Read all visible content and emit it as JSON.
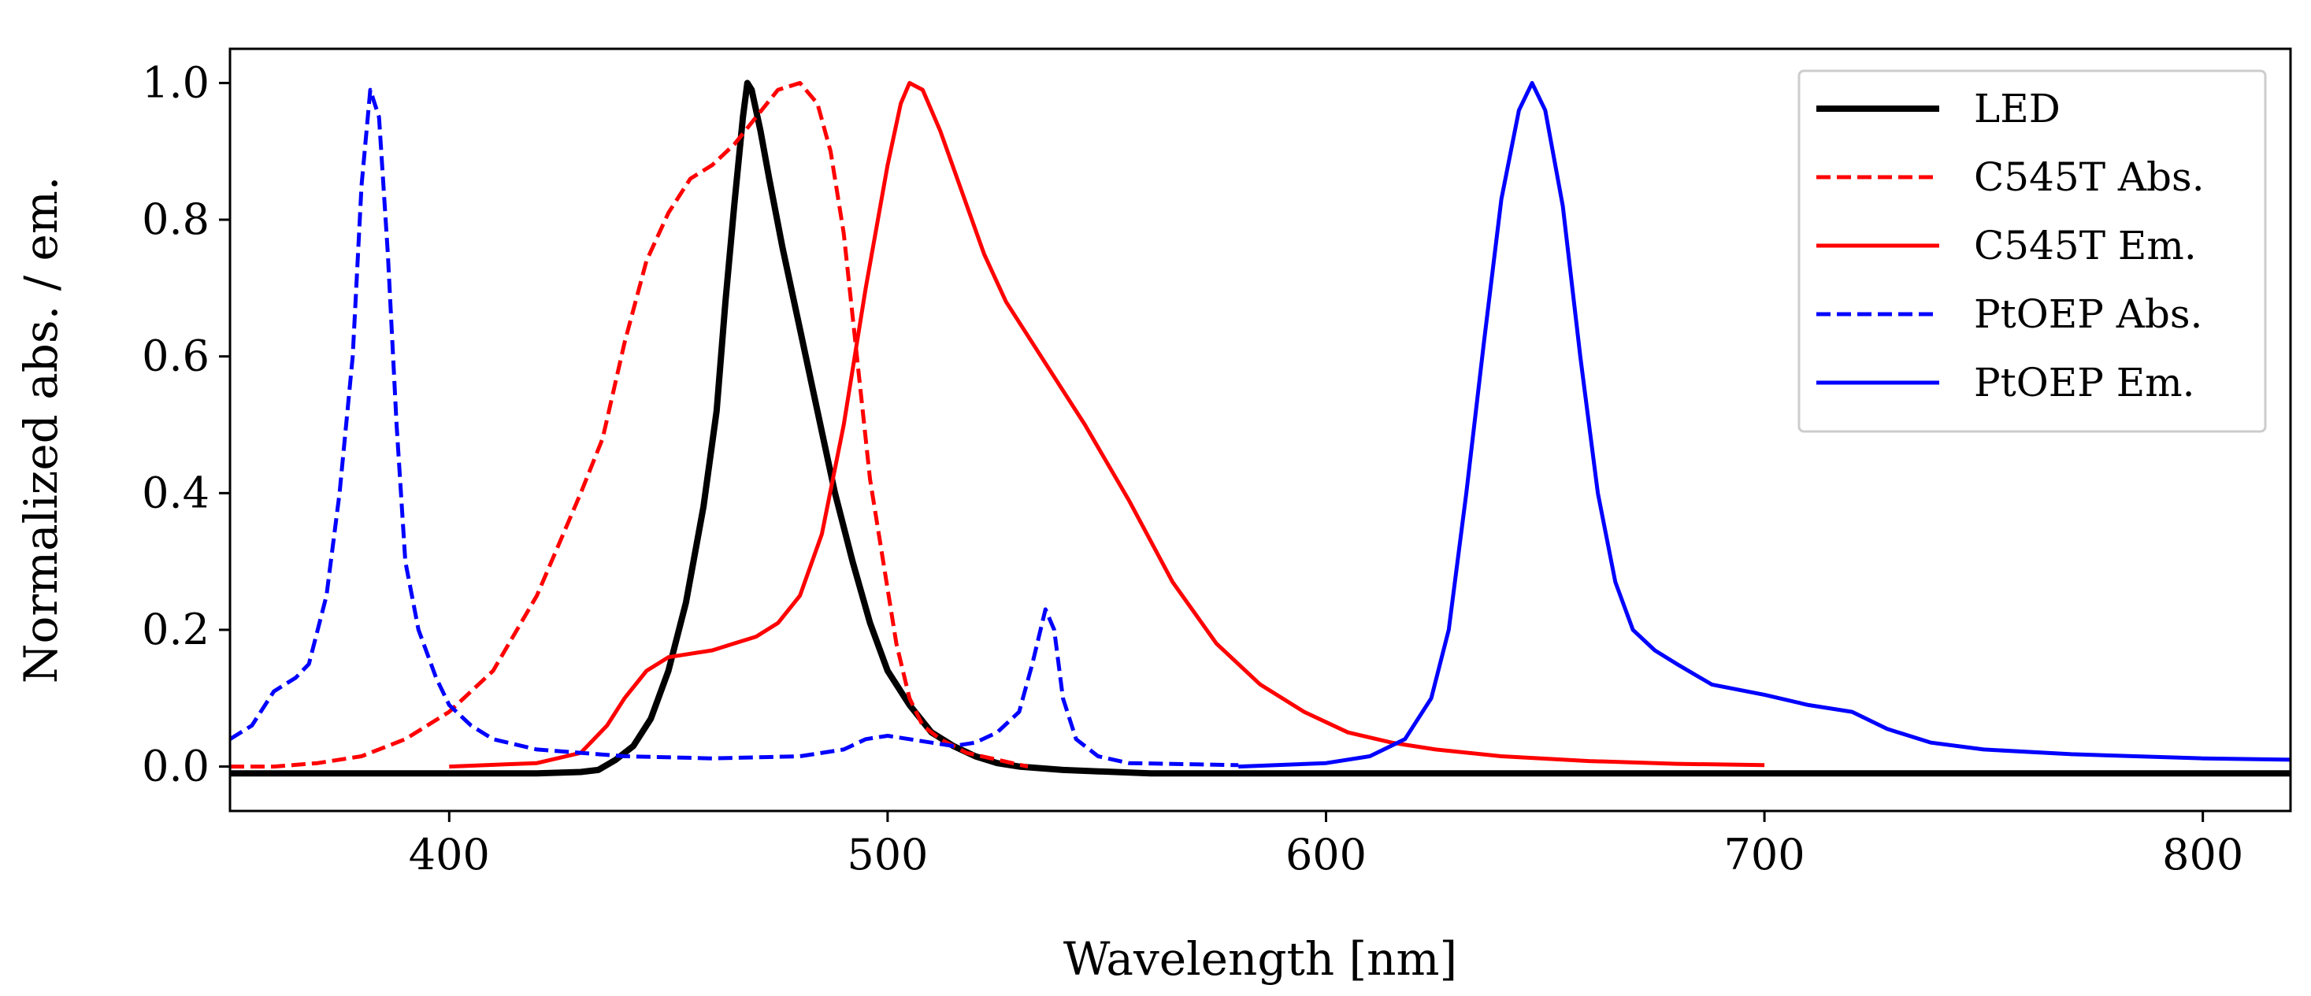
{
  "chart_data": {
    "type": "line",
    "title": "",
    "xlabel": "Wavelength [nm]",
    "ylabel": "Normalized abs. / em.",
    "xlim": [
      350,
      820
    ],
    "ylim": [
      -0.065,
      1.05
    ],
    "xticks": [
      400,
      500,
      600,
      700,
      800
    ],
    "xtick_labels": [
      "400",
      "500",
      "600",
      "700",
      "800"
    ],
    "yticks": [
      0.0,
      0.2,
      0.4,
      0.6,
      0.8,
      1.0
    ],
    "ytick_labels": [
      "0.0",
      "0.2",
      "0.4",
      "0.6",
      "0.8",
      "1.0"
    ],
    "grid": false,
    "legend_position": "top-right",
    "series": [
      {
        "name": "LED",
        "color": "#000000",
        "style": "solid",
        "weight": "thick",
        "points": [
          [
            350,
            -0.01
          ],
          [
            380,
            -0.01
          ],
          [
            400,
            -0.01
          ],
          [
            420,
            -0.01
          ],
          [
            430,
            -0.008
          ],
          [
            434,
            -0.005
          ],
          [
            438,
            0.01
          ],
          [
            442,
            0.03
          ],
          [
            446,
            0.07
          ],
          [
            450,
            0.14
          ],
          [
            454,
            0.24
          ],
          [
            458,
            0.38
          ],
          [
            461,
            0.52
          ],
          [
            463,
            0.68
          ],
          [
            465,
            0.82
          ],
          [
            467,
            0.95
          ],
          [
            468,
            1.0
          ],
          [
            469,
            0.99
          ],
          [
            471,
            0.93
          ],
          [
            473,
            0.86
          ],
          [
            476,
            0.76
          ],
          [
            480,
            0.64
          ],
          [
            484,
            0.52
          ],
          [
            488,
            0.4
          ],
          [
            492,
            0.3
          ],
          [
            496,
            0.21
          ],
          [
            500,
            0.14
          ],
          [
            505,
            0.09
          ],
          [
            510,
            0.05
          ],
          [
            515,
            0.03
          ],
          [
            520,
            0.015
          ],
          [
            525,
            0.005
          ],
          [
            530,
            0.0
          ],
          [
            540,
            -0.005
          ],
          [
            560,
            -0.01
          ],
          [
            600,
            -0.01
          ],
          [
            700,
            -0.01
          ],
          [
            820,
            -0.01
          ]
        ]
      },
      {
        "name": "C545T Abs.",
        "color": "#ff0000",
        "style": "dashed",
        "weight": "normal",
        "points": [
          [
            350,
            0.0
          ],
          [
            360,
            0.0
          ],
          [
            370,
            0.005
          ],
          [
            380,
            0.015
          ],
          [
            390,
            0.04
          ],
          [
            400,
            0.08
          ],
          [
            410,
            0.14
          ],
          [
            420,
            0.25
          ],
          [
            430,
            0.4
          ],
          [
            435,
            0.48
          ],
          [
            440,
            0.62
          ],
          [
            445,
            0.74
          ],
          [
            450,
            0.81
          ],
          [
            455,
            0.86
          ],
          [
            460,
            0.88
          ],
          [
            465,
            0.91
          ],
          [
            470,
            0.95
          ],
          [
            475,
            0.99
          ],
          [
            480,
            1.0
          ],
          [
            484,
            0.97
          ],
          [
            487,
            0.9
          ],
          [
            490,
            0.78
          ],
          [
            493,
            0.6
          ],
          [
            496,
            0.42
          ],
          [
            499,
            0.3
          ],
          [
            502,
            0.18
          ],
          [
            505,
            0.1
          ],
          [
            508,
            0.06
          ],
          [
            512,
            0.04
          ],
          [
            518,
            0.02
          ],
          [
            525,
            0.01
          ],
          [
            532,
            0.0
          ]
        ]
      },
      {
        "name": "C545T Em.",
        "color": "#ff0000",
        "style": "solid",
        "weight": "normal",
        "points": [
          [
            400,
            0.0
          ],
          [
            420,
            0.005
          ],
          [
            430,
            0.02
          ],
          [
            436,
            0.06
          ],
          [
            440,
            0.1
          ],
          [
            445,
            0.14
          ],
          [
            450,
            0.16
          ],
          [
            455,
            0.165
          ],
          [
            460,
            0.17
          ],
          [
            465,
            0.18
          ],
          [
            470,
            0.19
          ],
          [
            475,
            0.21
          ],
          [
            480,
            0.25
          ],
          [
            485,
            0.34
          ],
          [
            490,
            0.5
          ],
          [
            495,
            0.7
          ],
          [
            500,
            0.88
          ],
          [
            503,
            0.97
          ],
          [
            505,
            1.0
          ],
          [
            508,
            0.99
          ],
          [
            512,
            0.93
          ],
          [
            517,
            0.84
          ],
          [
            522,
            0.75
          ],
          [
            527,
            0.68
          ],
          [
            535,
            0.6
          ],
          [
            545,
            0.5
          ],
          [
            555,
            0.39
          ],
          [
            565,
            0.27
          ],
          [
            575,
            0.18
          ],
          [
            585,
            0.12
          ],
          [
            595,
            0.08
          ],
          [
            605,
            0.05
          ],
          [
            615,
            0.035
          ],
          [
            625,
            0.025
          ],
          [
            640,
            0.015
          ],
          [
            660,
            0.008
          ],
          [
            680,
            0.004
          ],
          [
            700,
            0.002
          ]
        ]
      },
      {
        "name": "PtOEP Abs.",
        "color": "#0000ff",
        "style": "dashed",
        "weight": "normal",
        "points": [
          [
            350,
            0.04
          ],
          [
            355,
            0.06
          ],
          [
            360,
            0.11
          ],
          [
            365,
            0.13
          ],
          [
            368,
            0.15
          ],
          [
            372,
            0.25
          ],
          [
            375,
            0.4
          ],
          [
            378,
            0.6
          ],
          [
            380,
            0.85
          ],
          [
            382,
            0.99
          ],
          [
            384,
            0.95
          ],
          [
            386,
            0.75
          ],
          [
            388,
            0.5
          ],
          [
            390,
            0.3
          ],
          [
            393,
            0.2
          ],
          [
            397,
            0.13
          ],
          [
            400,
            0.09
          ],
          [
            405,
            0.06
          ],
          [
            410,
            0.04
          ],
          [
            420,
            0.025
          ],
          [
            440,
            0.015
          ],
          [
            460,
            0.012
          ],
          [
            480,
            0.015
          ],
          [
            490,
            0.025
          ],
          [
            495,
            0.04
          ],
          [
            500,
            0.045
          ],
          [
            505,
            0.04
          ],
          [
            510,
            0.035
          ],
          [
            515,
            0.03
          ],
          [
            520,
            0.035
          ],
          [
            525,
            0.05
          ],
          [
            530,
            0.08
          ],
          [
            533,
            0.15
          ],
          [
            536,
            0.23
          ],
          [
            538,
            0.2
          ],
          [
            540,
            0.1
          ],
          [
            543,
            0.04
          ],
          [
            548,
            0.015
          ],
          [
            555,
            0.005
          ],
          [
            580,
            0.002
          ]
        ]
      },
      {
        "name": "PtOEP Em.",
        "color": "#0000ff",
        "style": "solid",
        "weight": "normal",
        "points": [
          [
            580,
            0.0
          ],
          [
            600,
            0.005
          ],
          [
            610,
            0.015
          ],
          [
            618,
            0.04
          ],
          [
            624,
            0.1
          ],
          [
            628,
            0.2
          ],
          [
            632,
            0.4
          ],
          [
            636,
            0.62
          ],
          [
            640,
            0.83
          ],
          [
            644,
            0.96
          ],
          [
            647,
            1.0
          ],
          [
            650,
            0.96
          ],
          [
            654,
            0.82
          ],
          [
            658,
            0.6
          ],
          [
            662,
            0.4
          ],
          [
            666,
            0.27
          ],
          [
            670,
            0.2
          ],
          [
            675,
            0.17
          ],
          [
            680,
            0.15
          ],
          [
            688,
            0.12
          ],
          [
            700,
            0.105
          ],
          [
            710,
            0.09
          ],
          [
            720,
            0.08
          ],
          [
            728,
            0.055
          ],
          [
            738,
            0.035
          ],
          [
            750,
            0.025
          ],
          [
            770,
            0.018
          ],
          [
            800,
            0.012
          ],
          [
            820,
            0.01
          ]
        ]
      }
    ]
  }
}
